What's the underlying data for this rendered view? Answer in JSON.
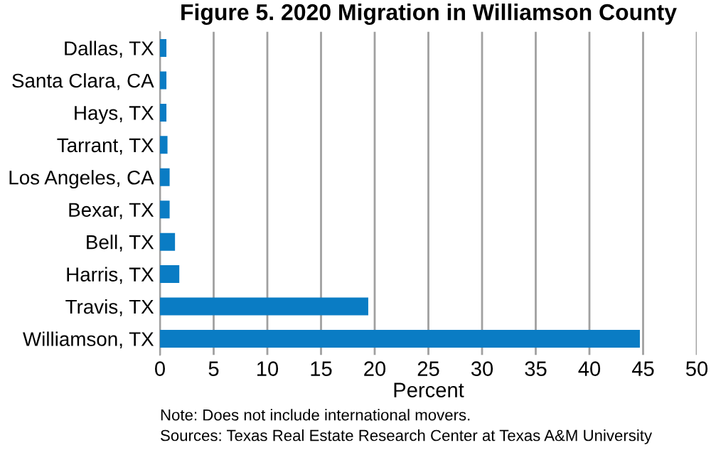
{
  "chart_data": {
    "type": "bar",
    "orientation": "horizontal",
    "title": "Figure 5. 2020 Migration in Williamson County",
    "xlabel": "Percent",
    "categories": [
      "Dallas, TX",
      "Santa Clara, CA",
      "Hays, TX",
      "Tarrant, TX",
      "Los Angeles, CA",
      "Bexar, TX",
      "Bell, TX",
      "Harris, TX",
      "Travis, TX",
      "Williamson, TX"
    ],
    "values": [
      0.6,
      0.6,
      0.6,
      0.7,
      0.9,
      0.9,
      1.4,
      1.8,
      19.4,
      44.7
    ],
    "color": "#0a7cc4",
    "xlim": [
      0,
      50
    ],
    "xticks": [
      0,
      5,
      10,
      15,
      20,
      25,
      30,
      35,
      40,
      45,
      50
    ],
    "grid": "x",
    "annotations": [
      "Note: Does not include international movers.",
      "Sources: Texas Real Estate Research Center at Texas A&M University"
    ]
  }
}
